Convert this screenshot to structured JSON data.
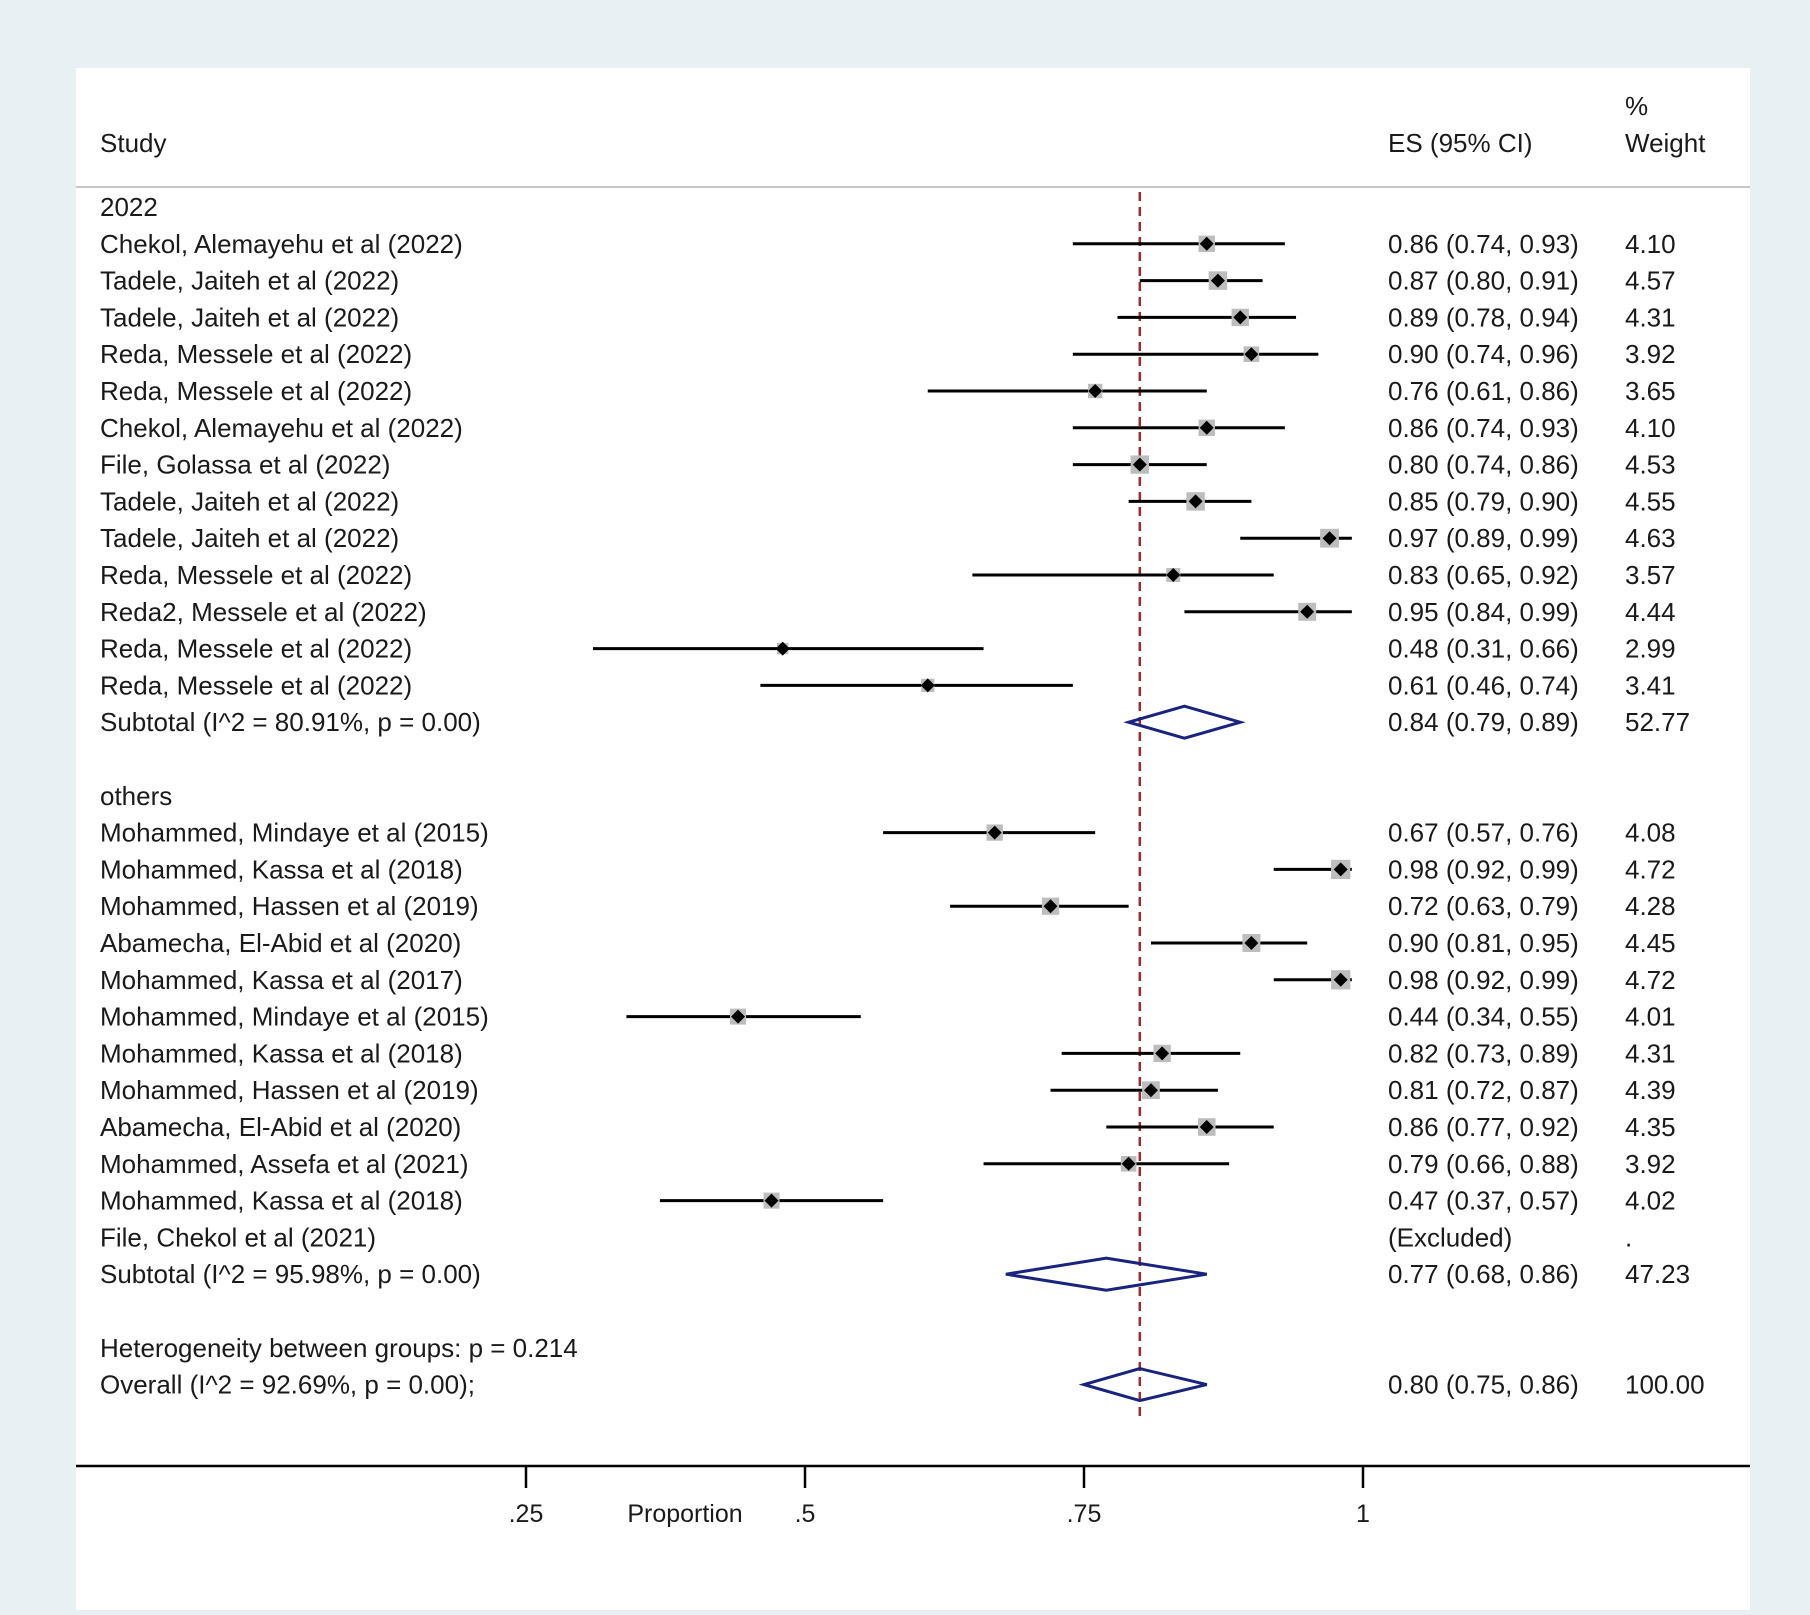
{
  "header": {
    "study_label": "Study",
    "es_label": "ES (95% CI)",
    "weight_label_1": "%",
    "weight_label_2": "Weight"
  },
  "chart_data": {
    "type": "forest",
    "xlabel": "Proportion",
    "xticks": [
      {
        "value": 0.25,
        "label": ".25"
      },
      {
        "value": 0.5,
        "label": ".5"
      },
      {
        "value": 0.75,
        "label": ".75"
      },
      {
        "value": 1.0,
        "label": "1"
      }
    ],
    "reference_line": 0.8,
    "colors": {
      "ci_line": "#000000",
      "weight_box": "#bdbdbd",
      "diamond_stroke": "#1a237e",
      "reference_line": "#9b2d2d"
    },
    "rows": [
      {
        "kind": "group",
        "label": "2022"
      },
      {
        "kind": "study",
        "label": "Chekol, Alemayehu et al  (2022)",
        "es": 0.86,
        "lo": 0.74,
        "hi": 0.93,
        "es_text": "0.86 (0.74, 0.93)",
        "weight_text": "4.10"
      },
      {
        "kind": "study",
        "label": "Tadele, Jaiteh et al (2022)",
        "es": 0.87,
        "lo": 0.8,
        "hi": 0.91,
        "es_text": "0.87 (0.80, 0.91)",
        "weight_text": "4.57"
      },
      {
        "kind": "study",
        "label": "Tadele, Jaiteh et al (2022)",
        "es": 0.89,
        "lo": 0.78,
        "hi": 0.94,
        "es_text": "0.89 (0.78, 0.94)",
        "weight_text": "4.31"
      },
      {
        "kind": "study",
        "label": "Reda, Messele et al (2022)",
        "es": 0.9,
        "lo": 0.74,
        "hi": 0.96,
        "es_text": "0.90 (0.74, 0.96)",
        "weight_text": "3.92"
      },
      {
        "kind": "study",
        "label": "Reda, Messele et al (2022)",
        "es": 0.76,
        "lo": 0.61,
        "hi": 0.86,
        "es_text": "0.76 (0.61, 0.86)",
        "weight_text": "3.65"
      },
      {
        "kind": "study",
        "label": "Chekol, Alemayehu et al (2022)",
        "es": 0.86,
        "lo": 0.74,
        "hi": 0.93,
        "es_text": "0.86 (0.74, 0.93)",
        "weight_text": "4.10"
      },
      {
        "kind": "study",
        "label": "File, Golassa et al (2022)",
        "es": 0.8,
        "lo": 0.74,
        "hi": 0.86,
        "es_text": "0.80 (0.74, 0.86)",
        "weight_text": "4.53"
      },
      {
        "kind": "study",
        "label": "Tadele, Jaiteh et al (2022)",
        "es": 0.85,
        "lo": 0.79,
        "hi": 0.9,
        "es_text": "0.85 (0.79, 0.90)",
        "weight_text": "4.55"
      },
      {
        "kind": "study",
        "label": "Tadele, Jaiteh et al (2022)",
        "es": 0.97,
        "lo": 0.89,
        "hi": 0.99,
        "es_text": "0.97 (0.89, 0.99)",
        "weight_text": "4.63"
      },
      {
        "kind": "study",
        "label": "Reda, Messele et al (2022)",
        "es": 0.83,
        "lo": 0.65,
        "hi": 0.92,
        "es_text": "0.83 (0.65, 0.92)",
        "weight_text": "3.57"
      },
      {
        "kind": "study",
        "label": "Reda2, Messele et al (2022)",
        "es": 0.95,
        "lo": 0.84,
        "hi": 0.99,
        "es_text": "0.95 (0.84, 0.99)",
        "weight_text": "4.44"
      },
      {
        "kind": "study",
        "label": "Reda, Messele et al (2022)",
        "es": 0.48,
        "lo": 0.31,
        "hi": 0.66,
        "es_text": "0.48 (0.31, 0.66)",
        "weight_text": "2.99"
      },
      {
        "kind": "study",
        "label": "Reda, Messele et al (2022)",
        "es": 0.61,
        "lo": 0.46,
        "hi": 0.74,
        "es_text": "0.61 (0.46, 0.74)",
        "weight_text": "3.41"
      },
      {
        "kind": "subtotal",
        "label": "Subtotal  (I^2 = 80.91%, p = 0.00)",
        "es": 0.84,
        "lo": 0.79,
        "hi": 0.89,
        "es_text": "0.84 (0.79, 0.89)",
        "weight_text": "52.77"
      },
      {
        "kind": "blank"
      },
      {
        "kind": "group",
        "label": "others"
      },
      {
        "kind": "study",
        "label": "Mohammed, Mindaye et al (2015)",
        "es": 0.67,
        "lo": 0.57,
        "hi": 0.76,
        "es_text": "0.67 (0.57, 0.76)",
        "weight_text": "4.08"
      },
      {
        "kind": "study",
        "label": "Mohammed, Kassa et al (2018)",
        "es": 0.98,
        "lo": 0.92,
        "hi": 0.99,
        "es_text": "0.98 (0.92, 0.99)",
        "weight_text": "4.72"
      },
      {
        "kind": "study",
        "label": "Mohammed, Hassen et al (2019)",
        "es": 0.72,
        "lo": 0.63,
        "hi": 0.79,
        "es_text": "0.72 (0.63, 0.79)",
        "weight_text": "4.28"
      },
      {
        "kind": "study",
        "label": "Abamecha, El-Abid et al (2020)",
        "es": 0.9,
        "lo": 0.81,
        "hi": 0.95,
        "es_text": "0.90 (0.81, 0.95)",
        "weight_text": "4.45"
      },
      {
        "kind": "study",
        "label": "Mohammed, Kassa et al  (2017)",
        "es": 0.98,
        "lo": 0.92,
        "hi": 0.99,
        "es_text": "0.98 (0.92, 0.99)",
        "weight_text": "4.72"
      },
      {
        "kind": "study",
        "label": "Mohammed, Mindaye et al (2015)",
        "es": 0.44,
        "lo": 0.34,
        "hi": 0.55,
        "es_text": "0.44 (0.34, 0.55)",
        "weight_text": "4.01"
      },
      {
        "kind": "study",
        "label": "Mohammed, Kassa et al (2018)",
        "es": 0.82,
        "lo": 0.73,
        "hi": 0.89,
        "es_text": "0.82 (0.73, 0.89)",
        "weight_text": "4.31"
      },
      {
        "kind": "study",
        "label": "Mohammed, Hassen et al (2019)",
        "es": 0.81,
        "lo": 0.72,
        "hi": 0.87,
        "es_text": "0.81 (0.72, 0.87)",
        "weight_text": "4.39"
      },
      {
        "kind": "study",
        "label": "Abamecha, El-Abid et al (2020)",
        "es": 0.86,
        "lo": 0.77,
        "hi": 0.92,
        "es_text": "0.86 (0.77, 0.92)",
        "weight_text": "4.35"
      },
      {
        "kind": "study",
        "label": "Mohammed, Assefa et al (2021)",
        "es": 0.79,
        "lo": 0.66,
        "hi": 0.88,
        "es_text": "0.79 (0.66, 0.88)",
        "weight_text": "3.92"
      },
      {
        "kind": "study",
        "label": "Mohammed, Kassa et al (2018)",
        "es": 0.47,
        "lo": 0.37,
        "hi": 0.57,
        "es_text": "0.47 (0.37, 0.57)",
        "weight_text": "4.02"
      },
      {
        "kind": "excluded",
        "label": "File, Chekol et al (2021)",
        "es_text": "(Excluded)",
        "weight_text": "."
      },
      {
        "kind": "subtotal",
        "label": "Subtotal  (I^2 = 95.98%, p = 0.00)",
        "es": 0.77,
        "lo": 0.68,
        "hi": 0.86,
        "es_text": "0.77 (0.68, 0.86)",
        "weight_text": "47.23"
      },
      {
        "kind": "blank"
      },
      {
        "kind": "text",
        "label": "Heterogeneity between groups: p = 0.214"
      },
      {
        "kind": "overall",
        "label": "Overall  (I^2 = 92.69%, p = 0.00);",
        "es": 0.8,
        "lo": 0.75,
        "hi": 0.86,
        "es_text": "0.80 (0.75, 0.86)",
        "weight_text": "100.00"
      }
    ]
  }
}
